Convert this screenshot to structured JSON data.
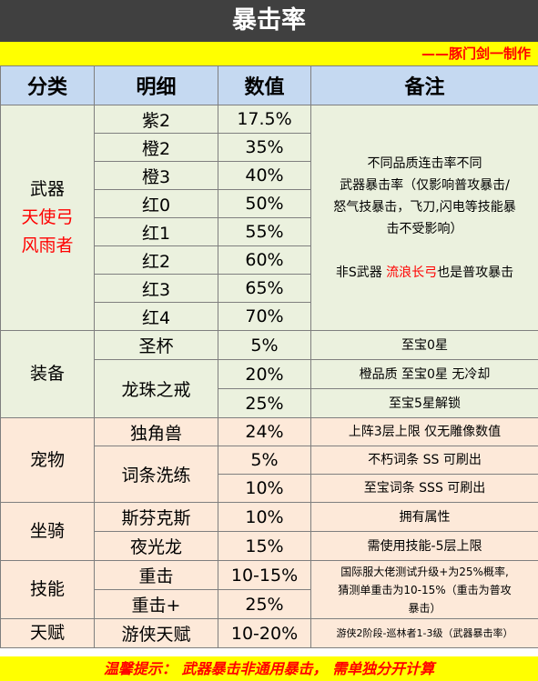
{
  "title": "暴击率",
  "credit": "——豚门剑一制作",
  "headers": {
    "category": "分类",
    "detail": "明细",
    "value": "数值",
    "note": "备注"
  },
  "weapon": {
    "category": "武器",
    "cat_red_1": "天使弓",
    "cat_red_2": "风雨者",
    "rows": [
      {
        "detail": "紫2",
        "value": "17.5%"
      },
      {
        "detail": "橙2",
        "value": "35%"
      },
      {
        "detail": "橙3",
        "value": "40%"
      },
      {
        "detail": "红0",
        "value": "50%"
      },
      {
        "detail": "红1",
        "value": "55%"
      },
      {
        "detail": "红2",
        "value": "60%"
      },
      {
        "detail": "红3",
        "value": "65%"
      },
      {
        "detail": "红4",
        "value": "70%"
      }
    ],
    "note_line1": "不同品质连击率不同",
    "note_line2": "武器暴击率（仅影响普攻暴击/",
    "note_line3": "怒气技暴击，飞刀,闪电等技能暴",
    "note_line4": "击不受影响）",
    "note2_pre": "非S武器 ",
    "note2_red": "流浪长弓",
    "note2_post": "也是普攻暴击"
  },
  "equip": {
    "category": "装备",
    "rows": [
      {
        "detail": "圣杯",
        "value": "5%",
        "note": "至宝0星"
      },
      {
        "detail": "龙珠之戒",
        "value": "20%",
        "note": "橙品质 至宝0星 无冷却"
      },
      {
        "value": "25%",
        "note": "至宝5星解锁"
      }
    ]
  },
  "pet": {
    "category": "宠物",
    "rows": [
      {
        "detail": "独角兽",
        "value": "24%",
        "note": "上阵3层上限 仅无雕像数值"
      },
      {
        "detail": "词条洗练",
        "value": "5%",
        "note": "不朽词条 SS 可刷出"
      },
      {
        "value": "10%",
        "note": "至宝词条 SSS 可刷出"
      }
    ]
  },
  "mount": {
    "category": "坐骑",
    "rows": [
      {
        "detail": "斯芬克斯",
        "value": "10%",
        "note": "拥有属性"
      },
      {
        "detail": "夜光龙",
        "value": "15%",
        "note": "需使用技能-5层上限"
      }
    ]
  },
  "skill": {
    "category": "技能",
    "rows": [
      {
        "detail": "重击",
        "value": "10-15%"
      },
      {
        "detail": "重击+",
        "value": "25%"
      }
    ],
    "note_line1": "国际服大佬测试升级+为25%概率,",
    "note_line2": "猜测单重击为10-15%（重击为普攻",
    "note_line3": "暴击）"
  },
  "talent": {
    "category": "天赋",
    "detail": "游侠天赋",
    "value": "10-20%",
    "note": "游侠2阶段-巡林者1-3级（武器暴击率）"
  },
  "footer": "温馨提示： 武器暴击非通用暴击， 需单独分开计算"
}
